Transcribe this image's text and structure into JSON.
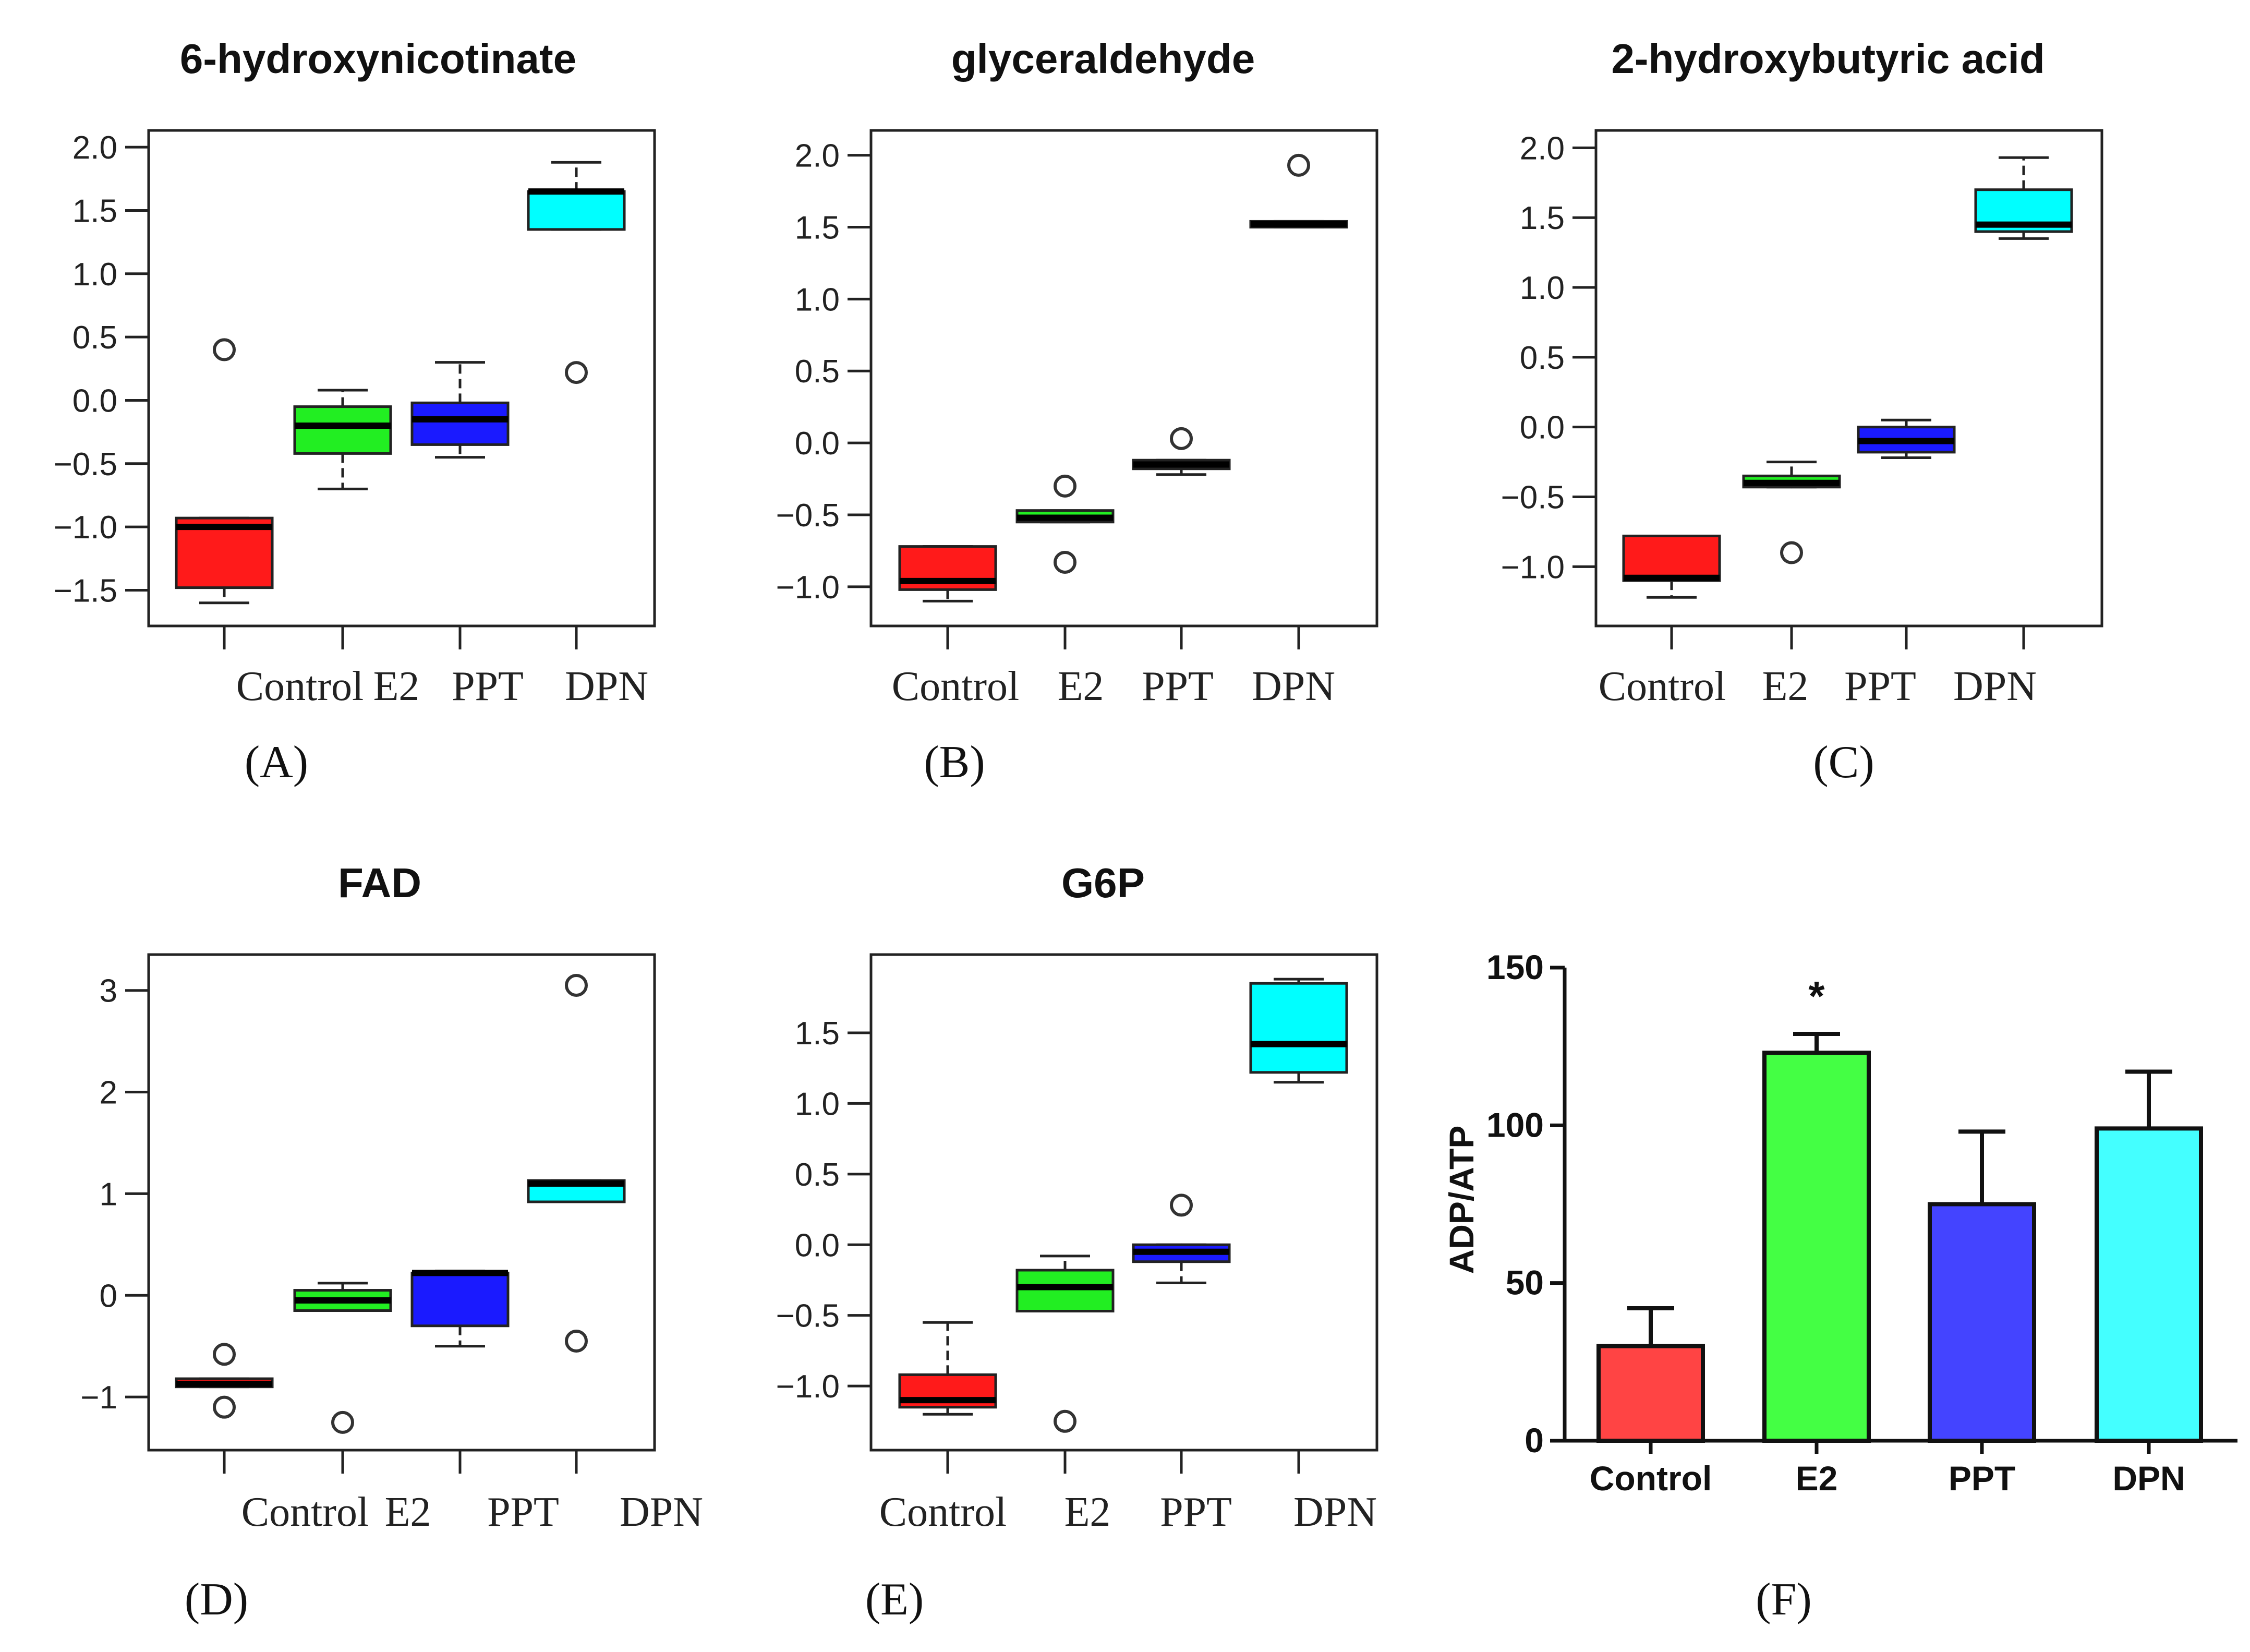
{
  "colors": {
    "Control": "#ff1a1a",
    "E2": "#22ee22",
    "PPT": "#1a1aff",
    "DPN": "#00ffff",
    "bar_Control": "#ff4444",
    "bar_E2": "#44ff44",
    "bar_PPT": "#4444ff",
    "bar_DPN": "#44ffff"
  },
  "chart_data": [
    {
      "panel": "(A)",
      "type": "box",
      "title": "6-hydroxynicotinate",
      "categories": [
        "Control",
        "E2",
        "PPT",
        "DPN"
      ],
      "ylim": [
        -1.7,
        2.05
      ],
      "yticks": [
        -1.5,
        -1.0,
        -0.5,
        0.0,
        0.5,
        1.0,
        1.5,
        2.0
      ],
      "ytick_labels": [
        "−1.5",
        "−1.0",
        "−0.5",
        "0.0",
        "0.5",
        "1.0",
        "1.5",
        "2.0"
      ],
      "boxes": [
        {
          "group": "Control",
          "min": -1.6,
          "q1": -1.48,
          "median": -1.0,
          "q3": -0.93,
          "max": -0.93,
          "outliers": [
            0.4
          ]
        },
        {
          "group": "E2",
          "min": -0.7,
          "q1": -0.42,
          "median": -0.2,
          "q3": -0.05,
          "max": 0.08,
          "outliers": []
        },
        {
          "group": "PPT",
          "min": -0.45,
          "q1": -0.35,
          "median": -0.15,
          "q3": -0.02,
          "max": 0.3,
          "outliers": []
        },
        {
          "group": "DPN",
          "min": 1.35,
          "q1": 1.35,
          "median": 1.65,
          "q3": 1.65,
          "max": 1.88,
          "outliers": [
            0.22
          ]
        }
      ]
    },
    {
      "panel": "(B)",
      "type": "box",
      "title": "glyceraldehyde",
      "categories": [
        "Control",
        "E2",
        "PPT",
        "DPN"
      ],
      "ylim": [
        -1.2,
        2.1
      ],
      "yticks": [
        -1.0,
        -0.5,
        0.0,
        0.5,
        1.0,
        1.5,
        2.0
      ],
      "ytick_labels": [
        "−1.0",
        "−0.5",
        "0.0",
        "0.5",
        "1.0",
        "1.5",
        "2.0"
      ],
      "boxes": [
        {
          "group": "Control",
          "min": -1.1,
          "q1": -1.02,
          "median": -0.96,
          "q3": -0.72,
          "max": -0.72,
          "outliers": []
        },
        {
          "group": "E2",
          "min": -0.55,
          "q1": -0.55,
          "median": -0.52,
          "q3": -0.47,
          "max": -0.47,
          "outliers": [
            -0.3,
            -0.83
          ]
        },
        {
          "group": "PPT",
          "min": -0.22,
          "q1": -0.18,
          "median": -0.15,
          "q3": -0.12,
          "max": -0.12,
          "outliers": [
            0.03
          ]
        },
        {
          "group": "DPN",
          "min": 1.5,
          "q1": 1.5,
          "median": 1.52,
          "q3": 1.54,
          "max": 1.54,
          "outliers": [
            1.93
          ]
        }
      ]
    },
    {
      "panel": "(C)",
      "type": "box",
      "title": "2-hydroxybutyric acid",
      "categories": [
        "Control",
        "E2",
        "PPT",
        "DPN"
      ],
      "ylim": [
        -1.35,
        2.05
      ],
      "yticks": [
        -1.0,
        -0.5,
        0.0,
        0.5,
        1.0,
        1.5,
        2.0
      ],
      "ytick_labels": [
        "−1.0",
        "−0.5",
        "0.0",
        "0.5",
        "1.0",
        "1.5",
        "2.0"
      ],
      "boxes": [
        {
          "group": "Control",
          "min": -1.22,
          "q1": -1.1,
          "median": -1.08,
          "q3": -0.78,
          "max": -0.78,
          "outliers": []
        },
        {
          "group": "E2",
          "min": -0.43,
          "q1": -0.43,
          "median": -0.4,
          "q3": -0.35,
          "max": -0.25,
          "outliers": [
            -0.9
          ]
        },
        {
          "group": "PPT",
          "min": -0.22,
          "q1": -0.18,
          "median": -0.1,
          "q3": 0.0,
          "max": 0.05,
          "outliers": []
        },
        {
          "group": "DPN",
          "min": 1.35,
          "q1": 1.4,
          "median": 1.45,
          "q3": 1.7,
          "max": 1.93,
          "outliers": []
        }
      ]
    },
    {
      "panel": "(D)",
      "type": "box",
      "title": "FAD",
      "categories": [
        "Control",
        "E2",
        "PPT",
        "DPN"
      ],
      "ylim": [
        -1.42,
        3.25
      ],
      "yticks": [
        -1,
        0,
        1,
        2,
        3
      ],
      "ytick_labels": [
        "−1",
        "0",
        "1",
        "2",
        "3"
      ],
      "boxes": [
        {
          "group": "Control",
          "min": -0.9,
          "q1": -0.9,
          "median": -0.87,
          "q3": -0.82,
          "max": -0.82,
          "outliers": [
            -0.58,
            -1.1
          ]
        },
        {
          "group": "E2",
          "min": -0.15,
          "q1": -0.15,
          "median": -0.05,
          "q3": 0.05,
          "max": 0.12,
          "outliers": [
            -1.25
          ]
        },
        {
          "group": "PPT",
          "min": -0.5,
          "q1": -0.3,
          "median": 0.22,
          "q3": 0.22,
          "max": 0.24,
          "outliers": []
        },
        {
          "group": "DPN",
          "min": 0.92,
          "q1": 0.92,
          "median": 1.1,
          "q3": 1.13,
          "max": 1.13,
          "outliers": [
            3.05,
            -0.45
          ]
        }
      ]
    },
    {
      "panel": "(E)",
      "type": "box",
      "title": "G6P",
      "categories": [
        "Control",
        "E2",
        "PPT",
        "DPN"
      ],
      "ylim": [
        -1.38,
        1.98
      ],
      "yticks": [
        -1.0,
        -0.5,
        0.0,
        0.5,
        1.0,
        1.5
      ],
      "ytick_labels": [
        "−1.0",
        "−0.5",
        "0.0",
        "0.5",
        "1.0",
        "1.5"
      ],
      "boxes": [
        {
          "group": "Control",
          "min": -1.2,
          "q1": -1.15,
          "median": -1.1,
          "q3": -0.92,
          "max": -0.55,
          "outliers": []
        },
        {
          "group": "E2",
          "min": -0.47,
          "q1": -0.47,
          "median": -0.3,
          "q3": -0.18,
          "max": -0.08,
          "outliers": [
            -1.25
          ]
        },
        {
          "group": "PPT",
          "min": -0.27,
          "q1": -0.12,
          "median": -0.05,
          "q3": 0.0,
          "max": 0.0,
          "outliers": [
            0.28
          ]
        },
        {
          "group": "DPN",
          "min": 1.15,
          "q1": 1.22,
          "median": 1.42,
          "q3": 1.85,
          "max": 1.88,
          "outliers": []
        }
      ]
    },
    {
      "panel": "(F)",
      "type": "bar",
      "title": "",
      "ylabel": "ADP/ATP",
      "categories": [
        "Control",
        "E2",
        "PPT",
        "DPN"
      ],
      "values": [
        30,
        123,
        75,
        99
      ],
      "errors": [
        12,
        6,
        23,
        18
      ],
      "ylim": [
        0,
        150
      ],
      "yticks": [
        0,
        50,
        100,
        150
      ],
      "ytick_labels": [
        "0",
        "50",
        "100",
        "150"
      ],
      "annotations": [
        {
          "category": "E2",
          "text": "*"
        }
      ]
    }
  ]
}
